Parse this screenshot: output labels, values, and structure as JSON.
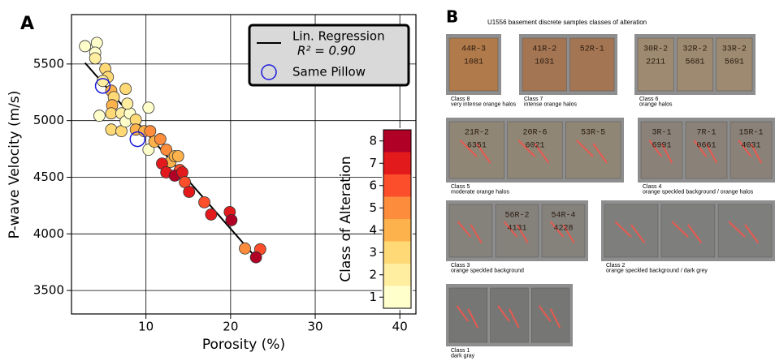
{
  "chart_data": {
    "type": "scatter",
    "label": "A",
    "xlabel": "Porosity (%)",
    "ylabel": "P-wave Velocity (m/s)",
    "xlim": [
      1.2,
      41.9
    ],
    "ylim": [
      3293,
      5936
    ],
    "xticks": [
      10,
      20,
      30,
      40
    ],
    "yticks": [
      3500,
      4000,
      4500,
      5000,
      5500
    ],
    "grid": true,
    "samples": {
      "x": [
        2.8,
        4.2,
        4.0,
        4.0,
        5.2,
        5.5,
        4.9,
        4.5,
        5.9,
        6.2,
        6.0,
        5.9,
        5.9,
        7.1,
        7.1,
        7.6,
        7.6,
        8.1,
        7.8,
        8.8,
        8.8,
        10.3,
        9.8,
        10.5,
        10.3,
        11.0,
        11.7,
        12.4,
        12.9,
        13.4,
        13.8,
        14.0,
        11.9,
        12.4,
        13.4,
        14.3,
        14.6,
        15.1,
        16.9,
        17.7,
        19.9,
        20.1,
        21.7,
        23.5,
        23.0
      ],
      "y": [
        5657,
        5686,
        5600,
        5550,
        5457,
        5385,
        5350,
        5043,
        5264,
        5207,
        5136,
        5064,
        4921,
        5064,
        4907,
        5280,
        4993,
        5064,
        5150,
        5007,
        4921,
        5114,
        4907,
        4907,
        4743,
        4814,
        4836,
        4743,
        4636,
        4686,
        4686,
        4564,
        4621,
        4543,
        4514,
        4543,
        4457,
        4371,
        4279,
        4171,
        4193,
        4121,
        3871,
        3864,
        3793
      ],
      "class": [
        1,
        1,
        1,
        2,
        3,
        3,
        2,
        1,
        4,
        3,
        4,
        3,
        3,
        2,
        3,
        3,
        1,
        1,
        2,
        3,
        4,
        1,
        4,
        5,
        1,
        4,
        5,
        5,
        4,
        4,
        4,
        6,
        7,
        7,
        8,
        7,
        6,
        7,
        6,
        7,
        7,
        8,
        5,
        6,
        8
      ]
    },
    "regression": {
      "name": "Lin. Regression",
      "annotation": "R² = 0.90",
      "color": "#000000",
      "x": [
        2.8,
        23.0
      ],
      "y": [
        5510,
        3790
      ]
    },
    "pillow": {
      "name": "Same Pillow",
      "color": "#1a1adb",
      "x": [
        4.9,
        9.0
      ],
      "y": [
        5307,
        4836
      ]
    },
    "colorbar": {
      "label": "Class of Alteration",
      "lim": [
        0.5,
        8.5
      ],
      "ticks": [
        1,
        2,
        3,
        4,
        5,
        6,
        7,
        8
      ],
      "colors": [
        "#ffffcc",
        "#ffeda0",
        "#fed976",
        "#feb24c",
        "#fd8d3c",
        "#fc4e2a",
        "#e31a1c",
        "#b10026"
      ]
    }
  },
  "panel_b": {
    "label": "B",
    "title": "U1556 basement discrete samples classes of alteration",
    "samples": [
      {
        "blocks": [
          [
            "44R-3",
            "1081"
          ]
        ],
        "caption": [
          "Class 8",
          "very intense orange halos"
        ]
      },
      {
        "blocks": [
          [
            "41R-2",
            "1031"
          ],
          [
            "52R-1"
          ]
        ],
        "caption": [
          "Class 7",
          "intense orange halos"
        ]
      },
      {
        "blocks": [
          [
            "30R-2",
            "2211"
          ],
          [
            "32R-2",
            "5681"
          ],
          [
            "33R-2",
            "5691"
          ]
        ],
        "caption": [
          "Class 6",
          "orange halos"
        ]
      },
      {
        "blocks": [
          [
            "21R-2",
            "6351"
          ],
          [
            "20R-6",
            "6021"
          ],
          [
            "53R-5"
          ]
        ],
        "caption": [
          "Class 5",
          "moderate orange halos"
        ]
      },
      {
        "blocks": [
          [
            "3R-1",
            "6991"
          ],
          [
            "7R-1",
            "0661"
          ],
          [
            "15R-1",
            "4031"
          ]
        ],
        "caption": [
          "Class 4",
          "orange speckled background / orange halos"
        ]
      },
      {
        "blocks": [
          [],
          [
            "56R-2",
            "4131"
          ],
          [
            "54R-4",
            "4228"
          ]
        ],
        "caption": [
          "Class 3",
          "orange speckled background"
        ]
      },
      {
        "blocks": [
          [],
          [],
          []
        ],
        "caption": [
          "Class 2",
          "orange speckled background / dark grey"
        ]
      },
      {
        "blocks": [
          [],
          [],
          []
        ],
        "caption": [
          "Class 1",
          "dark gray"
        ]
      }
    ]
  }
}
